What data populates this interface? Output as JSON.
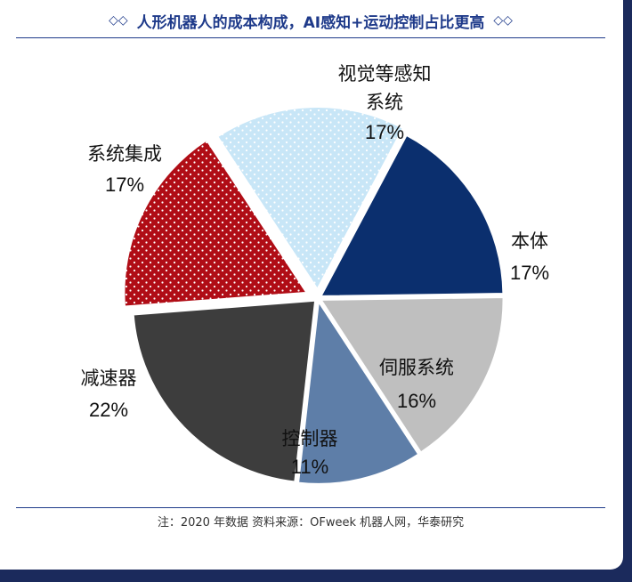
{
  "header": {
    "title": "人形机器人的成本构成，AI感知+运动控制占比更高",
    "left_icon": "double-diamond-icon",
    "right_icon": "double-diamond-icon"
  },
  "footer": {
    "note": "注：2020 年数据   资料来源：OFweek 机器人网，华泰研究"
  },
  "chart_data": {
    "type": "pie",
    "title": "",
    "slices": [
      {
        "name": "本体",
        "value": 17,
        "label": "17%",
        "color": "#0b2f6e",
        "pattern": "solid"
      },
      {
        "name": "伺服系统",
        "value": 16,
        "label": "16%",
        "color": "#bfbfbf",
        "pattern": "solid"
      },
      {
        "name": "控制器",
        "value": 11,
        "label": "11%",
        "color": "#5e7ea8",
        "pattern": "solid"
      },
      {
        "name": "减速器",
        "value": 22,
        "label": "22%",
        "color": "#3d3d3d",
        "pattern": "solid"
      },
      {
        "name": "系统集成",
        "value": 17,
        "label": "17%",
        "color": "#b00d16",
        "pattern": "dots-white"
      },
      {
        "name": "视觉等感知系统",
        "value": 17,
        "label": "17%",
        "color": "#c8e6f7",
        "pattern": "dots-white"
      }
    ]
  }
}
